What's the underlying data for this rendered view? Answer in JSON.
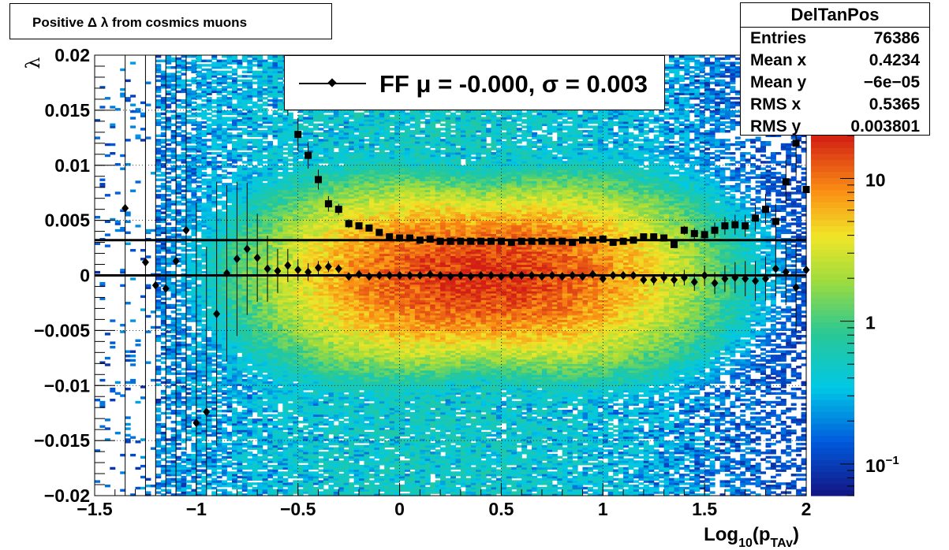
{
  "title": "Positive Δ λ from cosmics muons",
  "stats": {
    "name": "DelTanPos",
    "rows": [
      {
        "key": "Entries",
        "value": "76386"
      },
      {
        "key": "Mean x",
        "value": "0.4234"
      },
      {
        "key": "Mean y",
        "value": "−6e−05"
      },
      {
        "key": "RMS x",
        "value": "0.5365"
      },
      {
        "key": "RMS y",
        "value": "0.003801"
      }
    ]
  },
  "legend": {
    "label": "FF μ = -0.000, σ =   0.003"
  },
  "chart_data": {
    "type": "heatmap",
    "title": "Positive Δ λ from cosmics muons",
    "xlabel": "Log",
    "xlabel_sub": "10",
    "xlabel_tail": "(p",
    "xlabel_sub2": "TAv",
    "xlabel_end": ")",
    "ylabel": "λ",
    "xlim": [
      -1.5,
      2.0
    ],
    "ylim": [
      -0.02,
      0.02
    ],
    "x_ticks": [
      -1.5,
      -1,
      -0.5,
      0,
      0.5,
      1,
      1.5,
      2
    ],
    "x_tick_labels": [
      "−1.5",
      "−1",
      "−0.5",
      "0",
      "0.5",
      "1",
      "1.5",
      "2"
    ],
    "y_ticks": [
      -0.02,
      -0.015,
      -0.01,
      -0.005,
      0,
      0.005,
      0.01,
      0.015,
      0.02
    ],
    "y_tick_labels": [
      "−0.02",
      "−0.015",
      "−0.01",
      "−0.005",
      "0",
      "0.005",
      "0.01",
      "0.015",
      "0.02"
    ],
    "grid": true,
    "color_scale": "log",
    "z_range": [
      0.06,
      20
    ],
    "z_ticks": [
      0.1,
      1,
      10
    ],
    "z_tick_labels": [
      {
        "base": "10",
        "exp": "−1"
      },
      {
        "base": "1",
        "exp": ""
      },
      {
        "base": "10",
        "exp": ""
      }
    ],
    "colors": {
      "high": "#d7301f",
      "mid": "#f4d03f",
      "low": "#3ecfa0",
      "frame": "#000000"
    },
    "density_model": {
      "x_center": 0.4,
      "x_sigma": 0.5,
      "y_sigma_min": 0.0035,
      "y_sigma_slope": 0.0012,
      "peak": 18
    },
    "fit_lines": [
      {
        "name": "mean",
        "y": 0.0
      },
      {
        "name": "rms",
        "y": 0.0032
      }
    ],
    "series": [
      {
        "name": "FF",
        "marker": "diamond",
        "x": [
          -1.35,
          -1.25,
          -1.2,
          -1.15,
          -1.1,
          -1.05,
          -1.0,
          -0.95,
          -0.9,
          -0.85,
          -0.8,
          -0.75,
          -0.7,
          -0.65,
          -0.6,
          -0.55,
          -0.5,
          -0.45,
          -0.4,
          -0.35,
          -0.3,
          -0.25,
          -0.2,
          -0.15,
          -0.1,
          -0.05,
          0.0,
          0.05,
          0.1,
          0.15,
          0.2,
          0.25,
          0.3,
          0.35,
          0.4,
          0.45,
          0.5,
          0.55,
          0.6,
          0.65,
          0.7,
          0.75,
          0.8,
          0.85,
          0.9,
          0.95,
          1.0,
          1.05,
          1.1,
          1.15,
          1.2,
          1.25,
          1.3,
          1.35,
          1.4,
          1.45,
          1.5,
          1.55,
          1.6,
          1.65,
          1.7,
          1.75,
          1.8,
          1.85,
          1.9,
          1.95,
          2.0
        ],
        "y": [
          0.0061,
          0.0012,
          -0.0009,
          -0.0012,
          0.0013,
          0.0041,
          -0.0134,
          -0.0124,
          -0.0035,
          0.0002,
          0.0015,
          0.0024,
          0.0016,
          0.0006,
          0.0004,
          0.0009,
          0.0005,
          0.0003,
          0.0007,
          0.0008,
          0.0006,
          -0.0001,
          0.0001,
          -0.0001,
          0.0,
          0.0,
          0.0,
          0.0,
          0.0,
          0.0001,
          0.0,
          -0.0001,
          0.0,
          -0.0001,
          0.0,
          0.0,
          -0.0001,
          0.0,
          0.0,
          0.0,
          -0.0001,
          0.0,
          -0.0001,
          0.0,
          -0.0001,
          0.0001,
          -0.0003,
          0.0,
          0.0,
          0.0,
          -0.0004,
          -0.0004,
          -0.0002,
          -0.0004,
          -0.0002,
          -0.0006,
          0.0,
          -0.0007,
          -0.0003,
          -0.0002,
          -0.0003,
          -0.0005,
          -0.0003,
          0.0006,
          0.0003,
          -0.0011,
          0.0005
        ],
        "yerr": [
          0.035,
          0.03,
          0.03,
          0.03,
          0.025,
          0.02,
          0.02,
          0.015,
          0.012,
          0.008,
          0.007,
          0.006,
          0.004,
          0.003,
          0.002,
          0.0015,
          0.001,
          0.0008,
          0.0006,
          0.0005,
          0.0004,
          0.0003,
          0.0003,
          0.0002,
          0.0002,
          0.0002,
          0.0002,
          0.0002,
          0.0002,
          0.0002,
          0.0002,
          0.0002,
          0.0002,
          0.0002,
          0.0002,
          0.0002,
          0.0002,
          0.0002,
          0.0002,
          0.0002,
          0.0002,
          0.0002,
          0.0002,
          0.0002,
          0.0002,
          0.0002,
          0.0002,
          0.0003,
          0.0003,
          0.0003,
          0.0004,
          0.0005,
          0.0005,
          0.0006,
          0.0007,
          0.0008,
          0.0009,
          0.001,
          0.0012,
          0.0014,
          0.0016,
          0.0018,
          0.002,
          0.0025,
          0.003,
          0.004,
          0.005
        ]
      },
      {
        "name": "RMS",
        "marker": "square",
        "x": [
          -0.55,
          -0.5,
          -0.45,
          -0.4,
          -0.35,
          -0.3,
          -0.25,
          -0.2,
          -0.15,
          -0.1,
          -0.05,
          0.0,
          0.05,
          0.1,
          0.15,
          0.2,
          0.25,
          0.3,
          0.35,
          0.4,
          0.45,
          0.5,
          0.55,
          0.6,
          0.65,
          0.7,
          0.75,
          0.8,
          0.85,
          0.9,
          0.95,
          1.0,
          1.05,
          1.1,
          1.15,
          1.2,
          1.25,
          1.3,
          1.35,
          1.4,
          1.45,
          1.5,
          1.55,
          1.6,
          1.65,
          1.7,
          1.75,
          1.8,
          1.85,
          1.9,
          1.95,
          2.0
        ],
        "y": [
          0.0165,
          0.0128,
          0.0109,
          0.0087,
          0.0065,
          0.006,
          0.0047,
          0.0045,
          0.0043,
          0.0039,
          0.0035,
          0.0034,
          0.0034,
          0.0032,
          0.0033,
          0.0031,
          0.0031,
          0.0031,
          0.0031,
          0.0031,
          0.0031,
          0.0031,
          0.003,
          0.0031,
          0.0031,
          0.0031,
          0.0031,
          0.0031,
          0.003,
          0.0032,
          0.0032,
          0.0033,
          0.003,
          0.0031,
          0.0032,
          0.0035,
          0.0035,
          0.0034,
          0.0028,
          0.0041,
          0.0038,
          0.0037,
          0.0041,
          0.0045,
          0.0046,
          0.0045,
          0.0052,
          0.006,
          0.0049,
          0.0085,
          0.012,
          0.0078
        ],
        "yerr": [
          0.002,
          0.0015,
          0.0012,
          0.0009,
          0.0007,
          0.0005,
          0.0004,
          0.0003,
          0.0003,
          0.0002,
          0.0002,
          0.0002,
          0.0002,
          0.0002,
          0.0002,
          0.0002,
          0.0002,
          0.0002,
          0.0002,
          0.0002,
          0.0002,
          0.0002,
          0.0002,
          0.0002,
          0.0002,
          0.0002,
          0.0002,
          0.0002,
          0.0002,
          0.0002,
          0.0002,
          0.0002,
          0.0002,
          0.0002,
          0.0002,
          0.0003,
          0.0003,
          0.0003,
          0.0003,
          0.0004,
          0.0005,
          0.0006,
          0.0007,
          0.0008,
          0.0009,
          0.001,
          0.0012,
          0.0014,
          0.0016,
          0.002,
          0.003,
          0.004
        ]
      }
    ]
  }
}
